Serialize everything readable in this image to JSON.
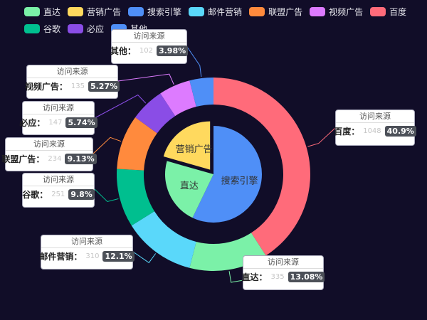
{
  "chart_data": {
    "type": "pie",
    "legend": {
      "position": "top-left",
      "items": [
        {
          "label": "直达",
          "color": "#7bf1a8"
        },
        {
          "label": "营销广告",
          "color": "#ffd95e"
        },
        {
          "label": "搜索引擎",
          "color": "#4f8ff7"
        },
        {
          "label": "邮件营销",
          "color": "#5ad8fa"
        },
        {
          "label": "联盟广告",
          "color": "#ff8a3d"
        },
        {
          "label": "视频广告",
          "color": "#dd7bff"
        },
        {
          "label": "百度",
          "color": "#ff6b7a"
        },
        {
          "label": "谷歌",
          "color": "#00bf8f"
        },
        {
          "label": "必应",
          "color": "#8a4de6"
        },
        {
          "label": "其他",
          "color": "#4f8ff7"
        }
      ]
    },
    "inner_series": {
      "name": "访问来源",
      "slices": [
        {
          "name": "直达",
          "value": 335,
          "color": "#7bf1a8"
        },
        {
          "name": "营销广告",
          "value": 310,
          "color": "#ffd95e"
        },
        {
          "name": "搜索引擎",
          "value": 860,
          "color": "#4f8ff7"
        }
      ]
    },
    "outer_series": {
      "name": "访问来源",
      "slices": [
        {
          "name": "百度",
          "value": 1048,
          "percent": "40.9%",
          "color": "#ff6b7a"
        },
        {
          "name": "直达",
          "value": 335,
          "percent": "13.08%",
          "color": "#7bf1a8"
        },
        {
          "name": "邮件营销",
          "value": 310,
          "percent": "12.1%",
          "color": "#5ad8fa"
        },
        {
          "name": "谷歌",
          "value": 251,
          "percent": "9.8%",
          "color": "#00bf8f"
        },
        {
          "name": "联盟广告",
          "value": 234,
          "percent": "9.13%",
          "color": "#ff8a3d"
        },
        {
          "name": "必应",
          "value": 147,
          "percent": "5.74%",
          "color": "#8a4de6"
        },
        {
          "name": "视频广告",
          "value": 135,
          "percent": "5.27%",
          "color": "#dd7bff"
        },
        {
          "name": "其他",
          "value": 102,
          "percent": "3.98%",
          "color": "#4f8ff7"
        }
      ]
    }
  }
}
